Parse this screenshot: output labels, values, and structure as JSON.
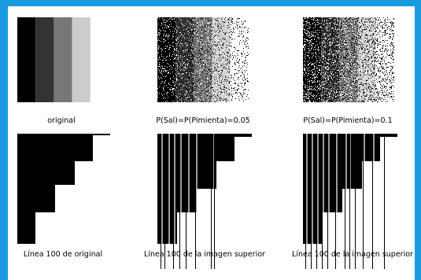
{
  "panels": [
    {
      "caption": "original"
    },
    {
      "caption": "P(Sal)=P(Pimienta)=0.05"
    },
    {
      "caption": "P(Sal)=P(Pimienta)=0.1"
    },
    {
      "caption": "Línea 100 de original"
    },
    {
      "caption": "Línea 100 de la imagen superior"
    },
    {
      "caption": "Línea 100 de la imagen superior"
    }
  ]
}
